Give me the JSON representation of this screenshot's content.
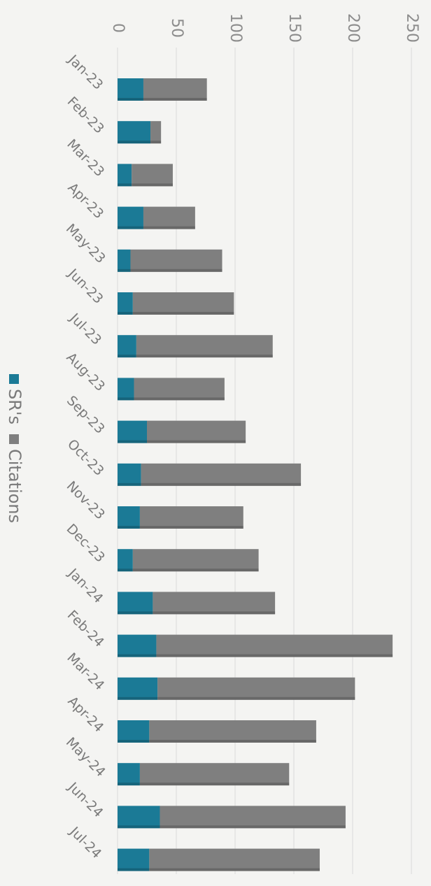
{
  "chart_data": {
    "type": "bar",
    "orientation": "horizontal-stacked",
    "rotation": "rotated 90 degrees clockwise",
    "categories": [
      "Jan-23",
      "Feb-23",
      "Mar-23",
      "Apr-23",
      "May-23",
      "Jun-23",
      "Jul-23",
      "Aug-23",
      "Sep-23",
      "Oct-23",
      "Nov-23",
      "Dec-23",
      "Jan-24",
      "Feb-24",
      "Mar-24",
      "Apr-24",
      "May-24",
      "Jun-24",
      "Jul-24"
    ],
    "series": [
      {
        "name": "SR's",
        "color": "#1b7a96",
        "values": [
          22,
          28,
          12,
          22,
          11,
          13,
          16,
          14,
          25,
          20,
          19,
          13,
          30,
          33,
          34,
          27,
          19,
          36,
          27
        ]
      },
      {
        "name": "Citations",
        "color": "#7f7f7f",
        "values": [
          54,
          9,
          35,
          44,
          78,
          86,
          116,
          77,
          84,
          136,
          88,
          107,
          104,
          201,
          168,
          142,
          127,
          158,
          145
        ]
      }
    ],
    "xlim": [
      0,
      250
    ],
    "ticks": [
      "0",
      "50",
      "100",
      "150",
      "200",
      "250"
    ],
    "grid": true,
    "legend_position": "bottom",
    "title": "",
    "xlabel": "",
    "ylabel": ""
  }
}
